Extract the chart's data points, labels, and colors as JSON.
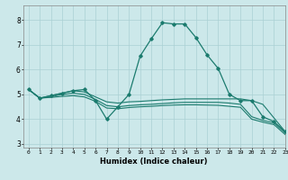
{
  "xlabel": "Humidex (Indice chaleur)",
  "xlim": [
    -0.5,
    23.0
  ],
  "ylim": [
    2.85,
    8.6
  ],
  "yticks": [
    3,
    4,
    5,
    6,
    7,
    8
  ],
  "xticks": [
    0,
    1,
    2,
    3,
    4,
    5,
    6,
    7,
    8,
    9,
    10,
    11,
    12,
    13,
    14,
    15,
    16,
    17,
    18,
    19,
    20,
    21,
    22,
    23
  ],
  "background_color": "#cce8ea",
  "grid_color": "#aad0d4",
  "line_color": "#1b7b6e",
  "peaked_line": {
    "x": [
      0,
      1,
      2,
      3,
      4,
      5,
      6,
      7,
      8,
      9,
      10,
      11,
      12,
      13,
      14,
      15,
      16,
      17,
      18,
      19,
      20,
      21,
      22,
      23
    ],
    "y": [
      5.2,
      4.85,
      4.95,
      5.05,
      5.15,
      5.2,
      4.75,
      4.0,
      4.5,
      5.0,
      6.55,
      7.25,
      7.9,
      7.85,
      7.85,
      7.3,
      6.6,
      6.05,
      5.0,
      4.75,
      4.75,
      4.1,
      3.9,
      3.5
    ]
  },
  "flat_line1": {
    "x": [
      0,
      1,
      2,
      3,
      4,
      5,
      6,
      7,
      8,
      9,
      10,
      11,
      12,
      13,
      14,
      15,
      16,
      17,
      18,
      19,
      20,
      21,
      22,
      23
    ],
    "y": [
      5.2,
      4.85,
      4.95,
      5.05,
      5.15,
      5.1,
      4.9,
      4.7,
      4.65,
      4.7,
      4.72,
      4.75,
      4.78,
      4.8,
      4.82,
      4.82,
      4.82,
      4.82,
      4.82,
      4.82,
      4.75,
      4.6,
      4.05,
      3.5
    ]
  },
  "flat_line2": {
    "x": [
      0,
      1,
      2,
      3,
      4,
      5,
      6,
      7,
      8,
      9,
      10,
      11,
      12,
      13,
      14,
      15,
      16,
      17,
      18,
      19,
      20,
      21,
      22,
      23
    ],
    "y": [
      5.2,
      4.85,
      4.9,
      5.0,
      5.05,
      5.0,
      4.8,
      4.55,
      4.5,
      4.55,
      4.58,
      4.6,
      4.63,
      4.66,
      4.68,
      4.68,
      4.68,
      4.68,
      4.65,
      4.6,
      4.1,
      3.95,
      3.85,
      3.45
    ]
  },
  "flat_line3": {
    "x": [
      0,
      1,
      2,
      3,
      4,
      5,
      6,
      7,
      8,
      9,
      10,
      11,
      12,
      13,
      14,
      15,
      16,
      17,
      18,
      19,
      20,
      21,
      22,
      23
    ],
    "y": [
      5.2,
      4.85,
      4.88,
      4.92,
      4.95,
      4.9,
      4.72,
      4.45,
      4.42,
      4.47,
      4.5,
      4.52,
      4.55,
      4.57,
      4.58,
      4.58,
      4.57,
      4.56,
      4.52,
      4.48,
      4.0,
      3.88,
      3.78,
      3.38
    ]
  }
}
